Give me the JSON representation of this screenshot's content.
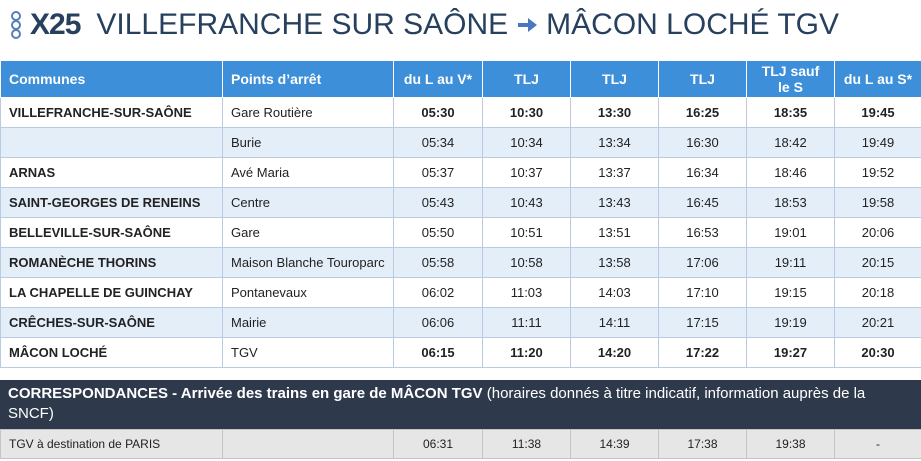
{
  "header": {
    "line": "X25",
    "from": "VILLEFRANCHE SUR SAÔNE",
    "to": "MÂCON LOCHÉ TGV"
  },
  "table": {
    "columns": [
      "Communes",
      "Points d’arrêt",
      "du L au V*",
      "TLJ",
      "TLJ",
      "TLJ",
      "TLJ  sauf le S",
      "du L au S*"
    ],
    "rows": [
      {
        "commune": "VILLEFRANCHE-SUR-SAÔNE",
        "stop": "Gare Routière",
        "times": [
          "05:30",
          "10:30",
          "13:30",
          "16:25",
          "18:35",
          "19:45"
        ],
        "bold": true
      },
      {
        "commune": null,
        "stop": "Burie",
        "times": [
          "05:34",
          "10:34",
          "13:34",
          "16:30",
          "18:42",
          "19:49"
        ],
        "bold": false
      },
      {
        "commune": "ARNAS",
        "stop": "Avé Maria",
        "times": [
          "05:37",
          "10:37",
          "13:37",
          "16:34",
          "18:46",
          "19:52"
        ],
        "bold": false
      },
      {
        "commune": "SAINT-GEORGES DE RENEINS",
        "stop": "Centre",
        "times": [
          "05:43",
          "10:43",
          "13:43",
          "16:45",
          "18:53",
          "19:58"
        ],
        "bold": false
      },
      {
        "commune": "BELLEVILLE-SUR-SAÔNE",
        "stop": "Gare",
        "times": [
          "05:50",
          "10:51",
          "13:51",
          "16:53",
          "19:01",
          "20:06"
        ],
        "bold": false
      },
      {
        "commune": "ROMANÈCHE THORINS",
        "stop": "Maison Blanche Touroparc",
        "times": [
          "05:58",
          "10:58",
          "13:58",
          "17:06",
          "19:11",
          "20:15"
        ],
        "bold": false
      },
      {
        "commune": "LA CHAPELLE DE GUINCHAY",
        "stop": "Pontanevaux",
        "times": [
          "06:02",
          "11:03",
          "14:03",
          "17:10",
          "19:15",
          "20:18"
        ],
        "bold": false
      },
      {
        "commune": "CRÊCHES-SUR-SAÔNE",
        "stop": "Mairie",
        "times": [
          "06:06",
          "11:11",
          "14:11",
          "17:15",
          "19:19",
          "20:21"
        ],
        "bold": false
      },
      {
        "commune": "MÂCON LOCHÉ",
        "stop": "TGV",
        "times": [
          "06:15",
          "11:20",
          "14:20",
          "17:22",
          "19:27",
          "20:30"
        ],
        "bold": true
      }
    ]
  },
  "correspondances": {
    "title": "CORRESPONDANCES - Arrivée des trains en gare de MÂCON TGV",
    "note": "(horaires donnés à titre indicatif, information auprès de la SNCF)",
    "row": {
      "label": "TGV à destination de PARIS",
      "stop": null,
      "times": [
        "06:31",
        "11:38",
        "14:39",
        "17:38",
        "19:38",
        "-"
      ]
    }
  }
}
